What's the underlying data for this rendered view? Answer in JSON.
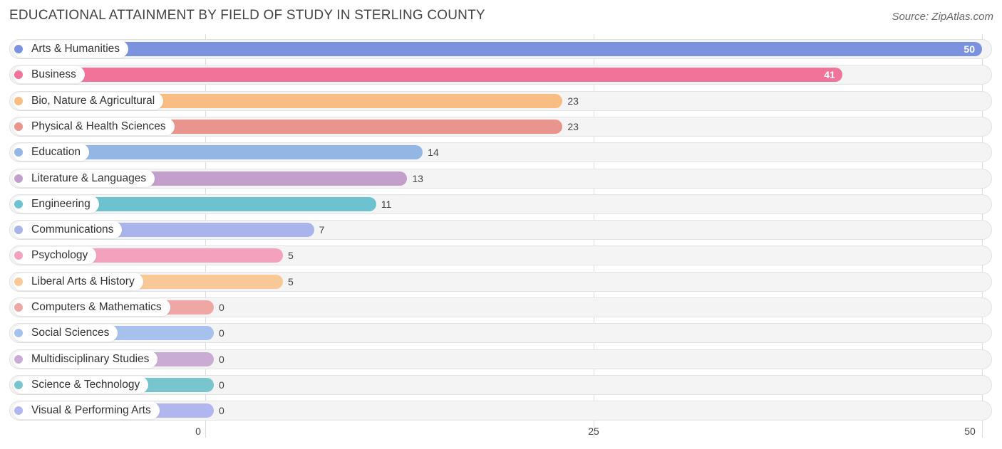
{
  "chart_data": {
    "type": "bar",
    "orientation": "horizontal",
    "title": "EDUCATIONAL ATTAINMENT BY FIELD OF STUDY IN STERLING COUNTY",
    "source": "Source: ZipAtlas.com",
    "xlim": [
      0,
      50
    ],
    "ticks": [
      0,
      25,
      50
    ],
    "categories": [
      "Arts & Humanities",
      "Business",
      "Bio, Nature & Agricultural",
      "Physical & Health Sciences",
      "Education",
      "Literature & Languages",
      "Engineering",
      "Communications",
      "Psychology",
      "Liberal Arts & History",
      "Computers & Mathematics",
      "Social Sciences",
      "Multidisciplinary Studies",
      "Science & Technology",
      "Visual & Performing Arts"
    ],
    "values": [
      50,
      41,
      23,
      23,
      14,
      13,
      11,
      7,
      5,
      5,
      0,
      0,
      0,
      0,
      0
    ],
    "colors": [
      "#7b93de",
      "#f27399",
      "#f8bd83",
      "#ea948e",
      "#93b6e5",
      "#c39fcb",
      "#6cc2ce",
      "#a9b4eb",
      "#f4a1bd",
      "#f8c896",
      "#efa7a6",
      "#a5c1ec",
      "#c9abd4",
      "#78c5cd",
      "#b2b6ee"
    ]
  }
}
